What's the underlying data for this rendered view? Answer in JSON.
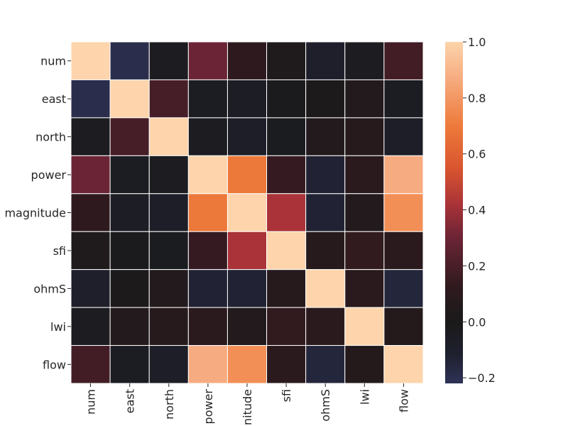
{
  "chart_data": {
    "type": "heatmap",
    "labels": [
      "num",
      "east",
      "north",
      "power",
      "magnitude",
      "sfi",
      "ohmS",
      "lwi",
      "flow"
    ],
    "x_tick_labels": [
      "num",
      "east",
      "north",
      "power",
      "nitude",
      "sfi",
      "ohmS",
      "lwi",
      "flow"
    ],
    "y_tick_labels": [
      "num",
      "east",
      "north",
      "power",
      "magnitude",
      "sfi",
      "ohmS",
      "lwi",
      "flow"
    ],
    "matrix": [
      [
        1.0,
        -0.19,
        -0.04,
        0.3,
        0.12,
        0.03,
        -0.09,
        -0.04,
        0.18
      ],
      [
        -0.19,
        1.0,
        0.19,
        -0.05,
        -0.06,
        -0.02,
        0.02,
        0.05,
        -0.05
      ],
      [
        -0.04,
        0.19,
        1.0,
        -0.04,
        -0.07,
        -0.03,
        0.05,
        0.07,
        -0.07
      ],
      [
        0.3,
        -0.05,
        -0.04,
        1.0,
        0.69,
        0.14,
        -0.13,
        0.1,
        0.87
      ],
      [
        0.12,
        -0.06,
        -0.07,
        0.69,
        1.0,
        0.42,
        -0.13,
        0.05,
        0.77
      ],
      [
        0.03,
        -0.02,
        -0.03,
        0.14,
        0.42,
        1.0,
        0.07,
        0.13,
        0.1
      ],
      [
        -0.09,
        0.02,
        0.05,
        -0.13,
        -0.13,
        0.07,
        1.0,
        0.1,
        -0.15
      ],
      [
        -0.04,
        0.05,
        0.07,
        0.1,
        0.05,
        0.13,
        0.1,
        1.0,
        0.06
      ],
      [
        0.18,
        -0.05,
        -0.07,
        0.87,
        0.77,
        0.1,
        -0.15,
        0.06,
        1.0
      ]
    ],
    "colorbar": {
      "min": -0.22,
      "max": 1.0,
      "ticks": [
        -0.2,
        0.0,
        0.2,
        0.4,
        0.6,
        0.8,
        1.0
      ],
      "tick_labels": [
        "−0.2",
        "0.0",
        "0.2",
        "0.4",
        "0.6",
        "0.8",
        "1.0"
      ],
      "colormap_center": 0.0,
      "stops": [
        {
          "v": -0.22,
          "color": "#2f3356"
        },
        {
          "v": -0.12,
          "color": "#1f2030"
        },
        {
          "v": 0.0,
          "color": "#1a1a1a"
        },
        {
          "v": 0.12,
          "color": "#2e1a1e"
        },
        {
          "v": 0.3,
          "color": "#6b2435"
        },
        {
          "v": 0.42,
          "color": "#a93338"
        },
        {
          "v": 0.55,
          "color": "#d9552f"
        },
        {
          "v": 0.7,
          "color": "#ed7a3b"
        },
        {
          "v": 0.87,
          "color": "#f6ac80"
        },
        {
          "v": 1.0,
          "color": "#fdd4ab"
        }
      ]
    },
    "gridlines": "white",
    "title": "",
    "xlabel": "",
    "ylabel": ""
  }
}
